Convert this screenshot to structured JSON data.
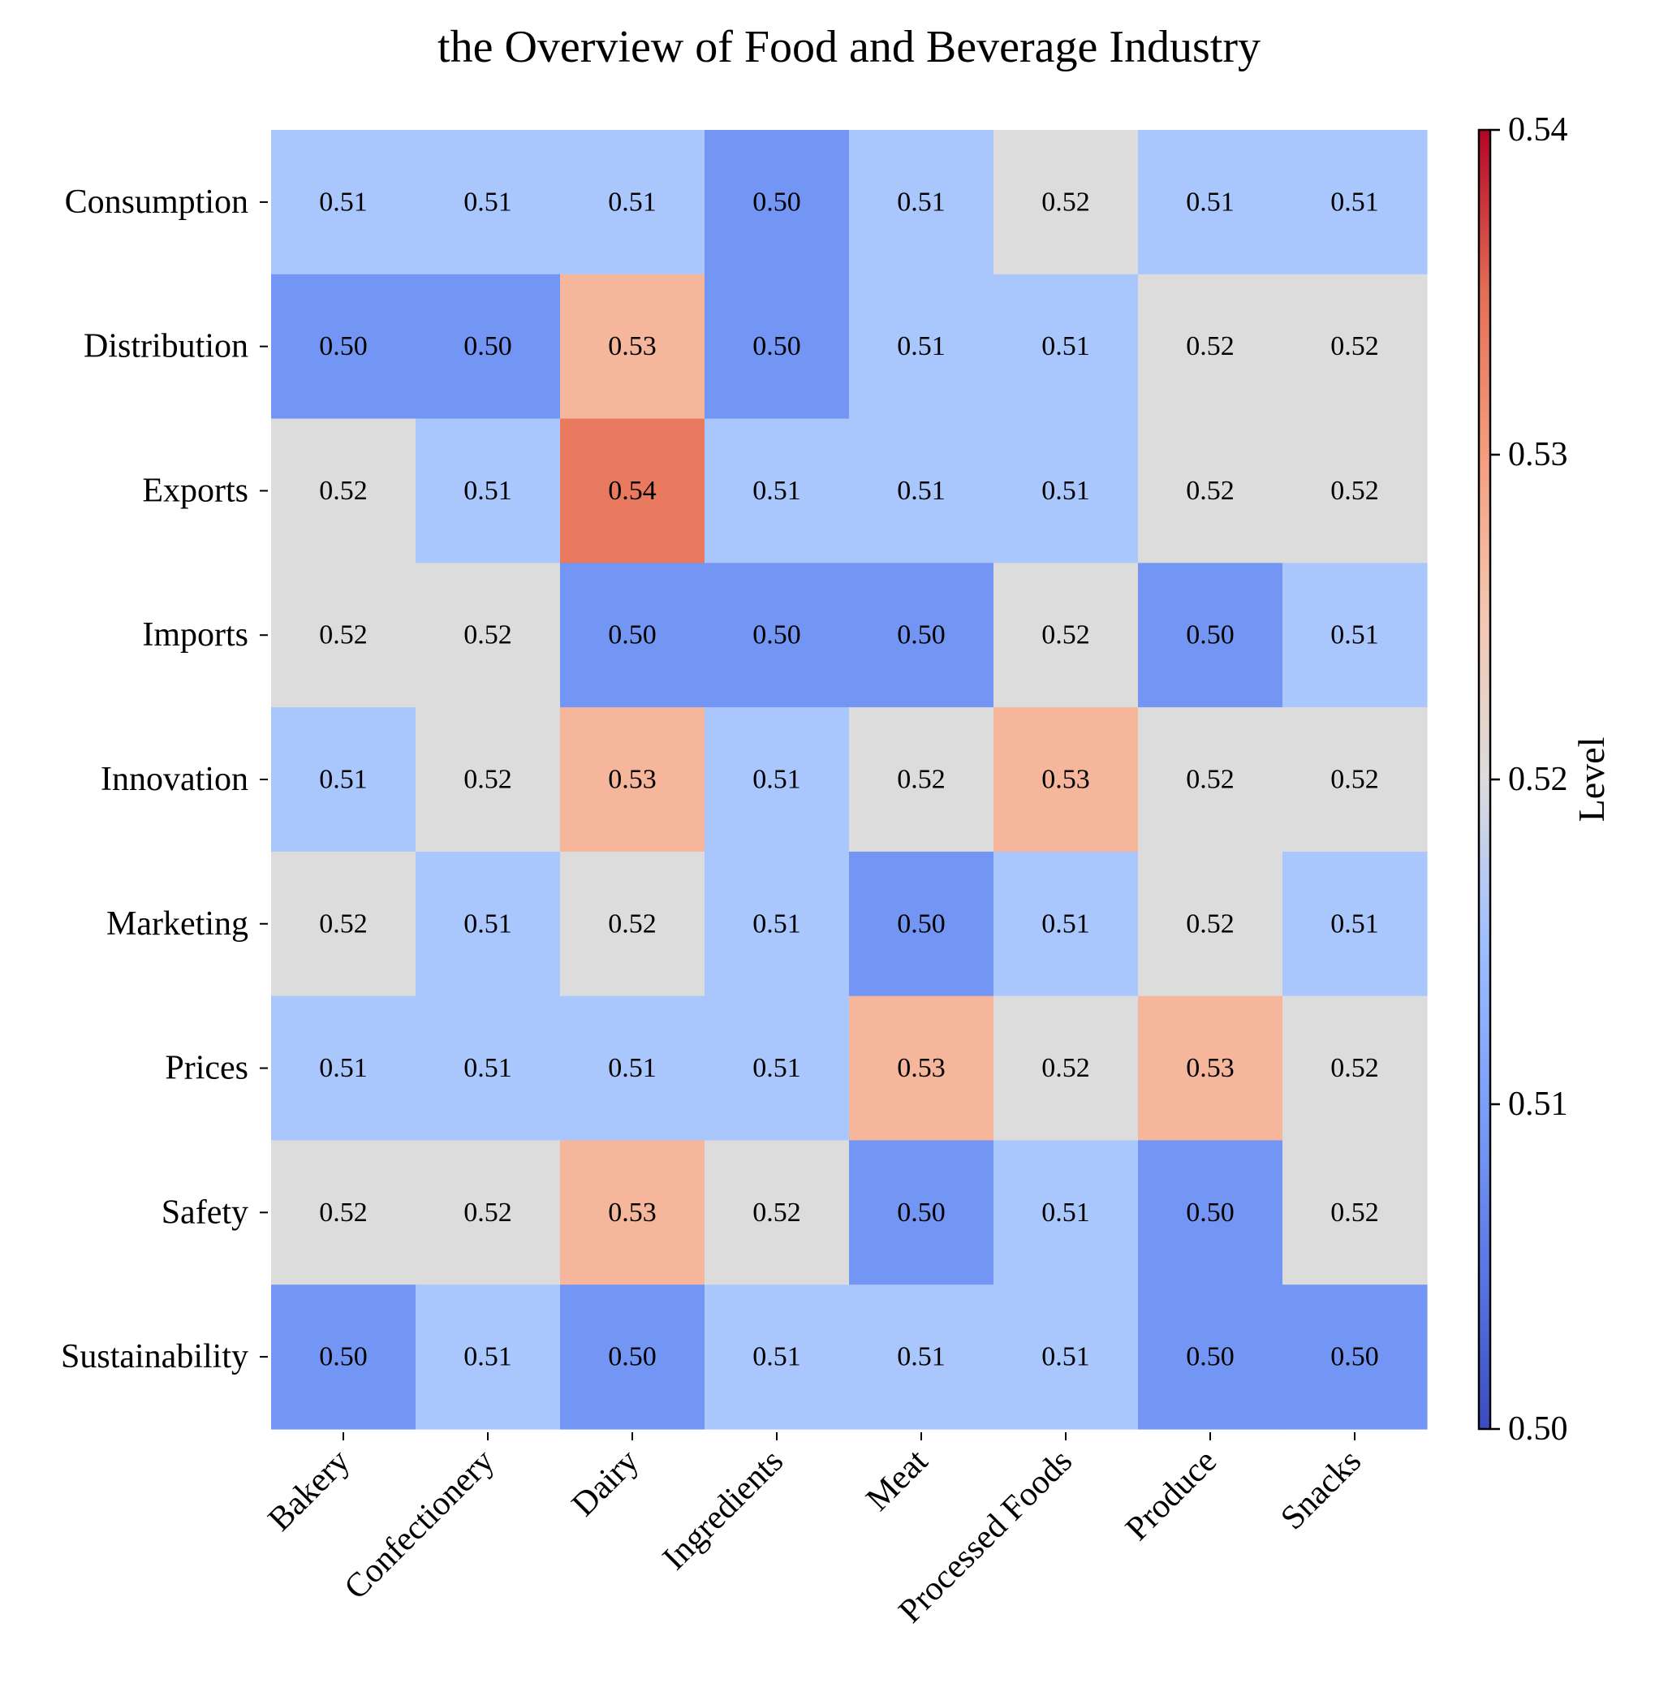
{
  "chart_data": {
    "type": "heatmap",
    "title": "the Overview of Food and Beverage Industry",
    "x_categories": [
      "Bakery",
      "Confectionery",
      "Dairy",
      "Ingredients",
      "Meat",
      "Processed Foods",
      "Produce",
      "Snacks"
    ],
    "y_categories": [
      "Consumption",
      "Distribution",
      "Exports",
      "Imports",
      "Innovation",
      "Marketing",
      "Prices",
      "Safety",
      "Sustainability"
    ],
    "values": [
      [
        0.51,
        0.51,
        0.51,
        0.5,
        0.51,
        0.52,
        0.51,
        0.51
      ],
      [
        0.5,
        0.5,
        0.53,
        0.5,
        0.51,
        0.51,
        0.52,
        0.52
      ],
      [
        0.52,
        0.51,
        0.54,
        0.51,
        0.51,
        0.51,
        0.52,
        0.52
      ],
      [
        0.52,
        0.52,
        0.5,
        0.5,
        0.5,
        0.52,
        0.5,
        0.51
      ],
      [
        0.51,
        0.52,
        0.53,
        0.51,
        0.52,
        0.53,
        0.52,
        0.52
      ],
      [
        0.52,
        0.51,
        0.52,
        0.51,
        0.5,
        0.51,
        0.52,
        0.51
      ],
      [
        0.51,
        0.51,
        0.51,
        0.51,
        0.53,
        0.52,
        0.53,
        0.52
      ],
      [
        0.52,
        0.52,
        0.53,
        0.52,
        0.5,
        0.51,
        0.5,
        0.52
      ],
      [
        0.5,
        0.51,
        0.5,
        0.51,
        0.51,
        0.51,
        0.5,
        0.5
      ]
    ],
    "value_format": "2-decimals",
    "colormap": "coolwarm",
    "colors": {
      "0.50": "#7396f5",
      "0.51": "#aac7fd",
      "0.52": "#dddcdc",
      "0.53": "#f5b69b",
      "0.54": "#e97a5f"
    },
    "colorbar": {
      "label": "Level",
      "range": [
        0.5,
        0.54
      ],
      "ticks": [
        "0.50",
        "0.51",
        "0.52",
        "0.53",
        "0.54"
      ]
    },
    "grid": false
  }
}
